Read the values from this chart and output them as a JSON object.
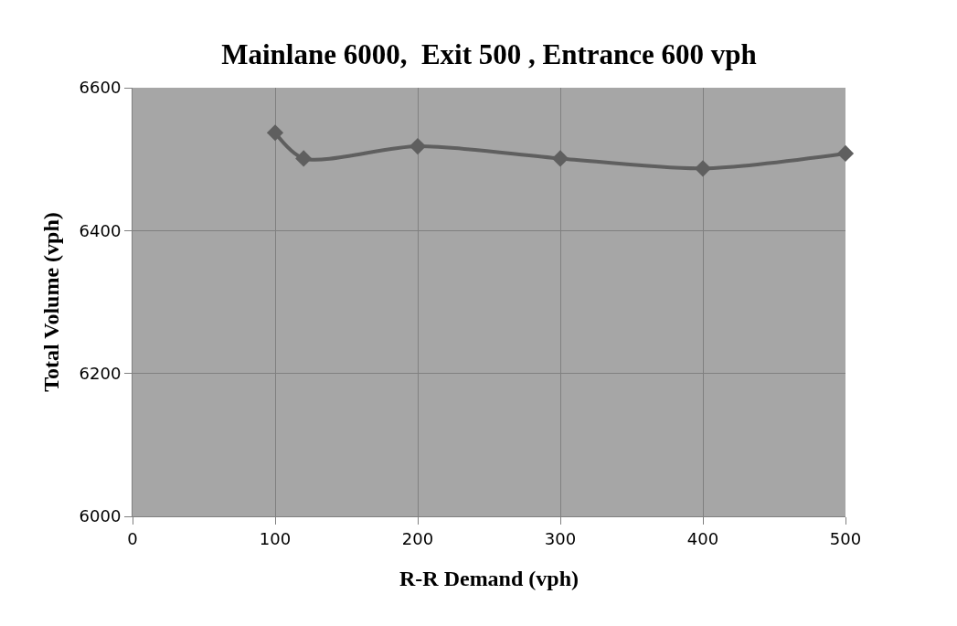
{
  "chart_data": {
    "type": "line",
    "title": "Mainlane 6000,  Exit 500 , Entrance 600 vph",
    "xlabel": "R-R Demand (vph)",
    "ylabel": "Total Volume (vph)",
    "x": [
      100,
      120,
      200,
      300,
      400,
      500
    ],
    "series": [
      {
        "color": "#5f5f5f",
        "values": [
          6537,
          6501,
          6518,
          6501,
          6487,
          6508
        ]
      }
    ],
    "xlim": [
      0,
      500
    ],
    "xticks": [
      0,
      100,
      200,
      300,
      400,
      500
    ],
    "ylim": [
      6000,
      6600
    ],
    "yticks": [
      6000,
      6200,
      6400,
      6600
    ],
    "grid": true,
    "marker": "diamond",
    "line_style": "solid"
  }
}
